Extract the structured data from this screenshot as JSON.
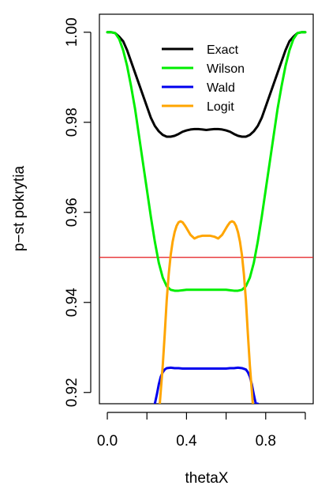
{
  "chart_data": {
    "type": "line",
    "xlabel": "thetaX",
    "ylabel": "p−st pokrytia",
    "xlim": [
      -0.04,
      1.04
    ],
    "ylim": [
      0.9175,
      1.004
    ],
    "xticks": [
      0.0,
      0.2,
      0.4,
      0.6,
      0.8,
      1.0
    ],
    "xtick_labels": [
      "0.0",
      "",
      "0.4",
      "",
      "0.8",
      ""
    ],
    "yticks": [
      0.92,
      0.94,
      0.96,
      0.98,
      1.0
    ],
    "ytick_labels": [
      "0.92",
      "0.94",
      "0.96",
      "0.98",
      "1.00"
    ],
    "reference_line": {
      "y": 0.95,
      "color": "#e41a1c"
    },
    "legend_position": "top-right",
    "series": [
      {
        "name": "Exact",
        "color": "#000000",
        "x": [
          0.0,
          0.02,
          0.04,
          0.06,
          0.08,
          0.1,
          0.12,
          0.14,
          0.16,
          0.18,
          0.2,
          0.22,
          0.24,
          0.26,
          0.28,
          0.3,
          0.32,
          0.34,
          0.36,
          0.38,
          0.4,
          0.42,
          0.44,
          0.46,
          0.48,
          0.5,
          0.52,
          0.54,
          0.56,
          0.58,
          0.6,
          0.62,
          0.64,
          0.66,
          0.68,
          0.7,
          0.72,
          0.74,
          0.76,
          0.78,
          0.8,
          0.82,
          0.84,
          0.86,
          0.88,
          0.9,
          0.92,
          0.94,
          0.96,
          0.98,
          1.0
        ],
        "y": [
          1.0,
          1.0,
          0.9998,
          0.999,
          0.998,
          0.996,
          0.9935,
          0.991,
          0.9885,
          0.986,
          0.9835,
          0.981,
          0.9792,
          0.978,
          0.9772,
          0.9768,
          0.9768,
          0.977,
          0.9774,
          0.9779,
          0.9782,
          0.9784,
          0.9785,
          0.9785,
          0.9784,
          0.9783,
          0.9784,
          0.9785,
          0.9785,
          0.9784,
          0.9782,
          0.9779,
          0.9774,
          0.977,
          0.9768,
          0.9768,
          0.9772,
          0.978,
          0.9792,
          0.981,
          0.9835,
          0.986,
          0.9885,
          0.991,
          0.9935,
          0.996,
          0.998,
          0.999,
          0.9998,
          1.0,
          1.0
        ]
      },
      {
        "name": "Wilson",
        "color": "#00ee00",
        "x": [
          0.0,
          0.02,
          0.04,
          0.06,
          0.08,
          0.1,
          0.12,
          0.14,
          0.16,
          0.18,
          0.2,
          0.22,
          0.24,
          0.26,
          0.28,
          0.3,
          0.32,
          0.34,
          0.36,
          0.38,
          0.4,
          0.42,
          0.44,
          0.46,
          0.48,
          0.5,
          0.52,
          0.54,
          0.56,
          0.58,
          0.6,
          0.62,
          0.64,
          0.66,
          0.68,
          0.7,
          0.72,
          0.74,
          0.76,
          0.78,
          0.8,
          0.82,
          0.84,
          0.86,
          0.88,
          0.9,
          0.92,
          0.94,
          0.96,
          0.98,
          1.0
        ],
        "y": [
          1.0,
          1.0,
          0.9998,
          0.9985,
          0.996,
          0.9925,
          0.988,
          0.983,
          0.977,
          0.971,
          0.965,
          0.959,
          0.9535,
          0.9488,
          0.9455,
          0.9436,
          0.9428,
          0.9426,
          0.9426,
          0.9427,
          0.9428,
          0.9428,
          0.9428,
          0.9428,
          0.9428,
          0.9428,
          0.9428,
          0.9428,
          0.9428,
          0.9428,
          0.9428,
          0.9427,
          0.9426,
          0.9426,
          0.9428,
          0.9436,
          0.9455,
          0.9488,
          0.9535,
          0.959,
          0.965,
          0.971,
          0.977,
          0.983,
          0.988,
          0.9925,
          0.996,
          0.9985,
          0.9998,
          1.0,
          1.0
        ]
      },
      {
        "name": "Wald",
        "color": "#0000ee",
        "x": [
          0.24,
          0.25,
          0.26,
          0.27,
          0.28,
          0.29,
          0.3,
          0.32,
          0.34,
          0.36,
          0.38,
          0.4,
          0.42,
          0.44,
          0.46,
          0.48,
          0.5,
          0.52,
          0.54,
          0.56,
          0.58,
          0.6,
          0.62,
          0.64,
          0.66,
          0.68,
          0.7,
          0.71,
          0.72,
          0.73,
          0.74,
          0.75,
          0.76
        ],
        "y": [
          0.9175,
          0.9195,
          0.9218,
          0.9235,
          0.9245,
          0.9251,
          0.9254,
          0.9255,
          0.9254,
          0.9254,
          0.9253,
          0.9253,
          0.9253,
          0.9253,
          0.9253,
          0.9253,
          0.9253,
          0.9253,
          0.9253,
          0.9253,
          0.9253,
          0.9253,
          0.9254,
          0.9254,
          0.9255,
          0.9254,
          0.9251,
          0.9245,
          0.9235,
          0.9218,
          0.9195,
          0.9175,
          0.9175
        ]
      },
      {
        "name": "Logit",
        "color": "#ffa500",
        "x": [
          0.265,
          0.28,
          0.29,
          0.3,
          0.31,
          0.32,
          0.33,
          0.34,
          0.35,
          0.36,
          0.37,
          0.38,
          0.39,
          0.4,
          0.42,
          0.44,
          0.46,
          0.48,
          0.5,
          0.52,
          0.54,
          0.56,
          0.58,
          0.6,
          0.61,
          0.62,
          0.63,
          0.64,
          0.65,
          0.66,
          0.67,
          0.68,
          0.69,
          0.7,
          0.71,
          0.72,
          0.735
        ],
        "y": [
          0.9175,
          0.926,
          0.933,
          0.9405,
          0.9462,
          0.9505,
          0.9535,
          0.9556,
          0.957,
          0.9578,
          0.958,
          0.9578,
          0.9572,
          0.9565,
          0.955,
          0.9542,
          0.9546,
          0.9548,
          0.9548,
          0.9548,
          0.9546,
          0.9542,
          0.955,
          0.9565,
          0.9572,
          0.9578,
          0.958,
          0.9578,
          0.957,
          0.9556,
          0.9535,
          0.9505,
          0.9462,
          0.9405,
          0.933,
          0.926,
          0.9175
        ]
      }
    ]
  }
}
